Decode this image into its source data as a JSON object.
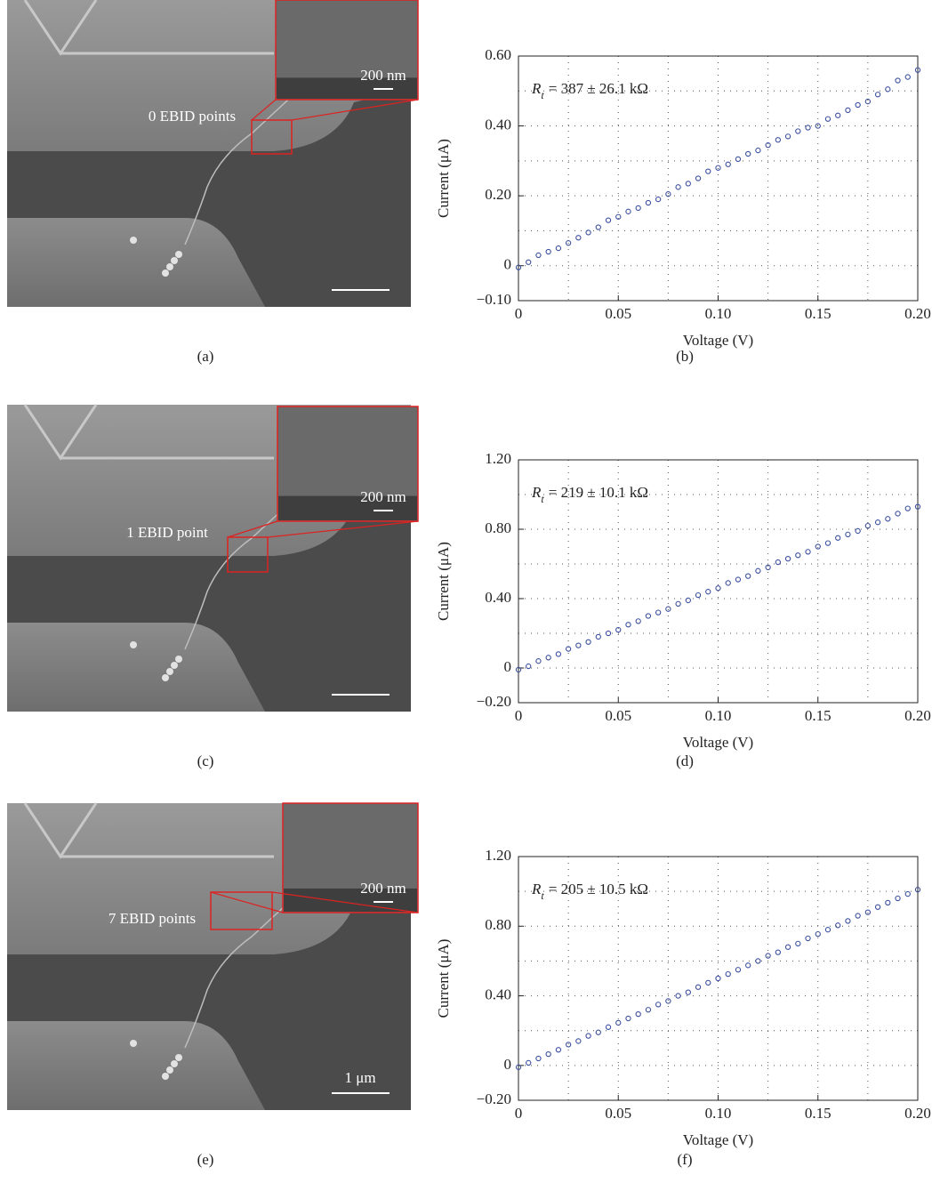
{
  "sem": [
    {
      "label": "(a)",
      "annotation": "0 EBID points",
      "inset_scale": "200 nm"
    },
    {
      "label": "(c)",
      "annotation": "1 EBID point",
      "inset_scale": "200 nm"
    },
    {
      "label": "(e)",
      "annotation": "7 EBID points",
      "inset_scale": "200 nm",
      "scale": "1 μm"
    }
  ],
  "chart_data": [
    {
      "type": "scatter",
      "label": "(b)",
      "x_label": "Voltage (V)",
      "y_label": "Current (μA)",
      "annotation": {
        "symbol": "R",
        "subscript": "t",
        "text": "= 387 ± 26.1 kΩ"
      },
      "color": "#3a4f9e",
      "grid": true,
      "xlim": [
        0,
        0.2
      ],
      "xticks": [
        0,
        0.05,
        {
          "value": 0.1,
          "label": "0.10"
        },
        0.15,
        {
          "value": 0.2,
          "label": "0.20"
        }
      ],
      "xminorticks": [
        0.025,
        0.075,
        0.125,
        0.175
      ],
      "ylim": [
        -0.1,
        0.6
      ],
      "yticks": [
        {
          "value": -0.1,
          "label": "−0.10"
        },
        0,
        {
          "value": 0.2,
          "label": "0.20"
        },
        {
          "value": 0.4,
          "label": "0.40"
        },
        {
          "value": 0.6,
          "label": "0.60"
        }
      ],
      "yminorticks": [
        0.1,
        0.3,
        0.5
      ],
      "x": [
        0,
        0.005,
        0.01,
        0.015,
        0.02,
        0.025,
        0.03,
        0.035,
        0.04,
        0.045,
        0.05,
        0.055,
        0.06,
        0.065,
        0.07,
        0.075,
        0.08,
        0.085,
        0.09,
        0.095,
        0.1,
        0.105,
        0.11,
        0.115,
        0.12,
        0.125,
        0.13,
        0.135,
        0.14,
        0.145,
        0.15,
        0.155,
        0.16,
        0.165,
        0.17,
        0.175,
        0.18,
        0.185,
        0.19,
        0.195,
        0.2
      ],
      "values": [
        -0.005,
        0.01,
        0.03,
        0.04,
        0.05,
        0.065,
        0.08,
        0.095,
        0.11,
        0.13,
        0.14,
        0.155,
        0.165,
        0.18,
        0.19,
        0.205,
        0.225,
        0.235,
        0.25,
        0.27,
        0.28,
        0.29,
        0.305,
        0.32,
        0.33,
        0.345,
        0.36,
        0.37,
        0.385,
        0.395,
        0.4,
        0.42,
        0.43,
        0.445,
        0.46,
        0.47,
        0.49,
        0.505,
        0.53,
        0.54,
        0.56
      ]
    },
    {
      "type": "scatter",
      "label": "(d)",
      "x_label": "Voltage (V)",
      "y_label": "Current (μA)",
      "annotation": {
        "symbol": "R",
        "subscript": "t",
        "text": "= 219 ± 10.1 kΩ"
      },
      "color": "#3a4f9e",
      "grid": true,
      "xlim": [
        0,
        0.2
      ],
      "xticks": [
        0,
        0.05,
        {
          "value": 0.1,
          "label": "0.10"
        },
        0.15,
        {
          "value": 0.2,
          "label": "0.20"
        }
      ],
      "xminorticks": [
        0.025,
        0.075,
        0.125,
        0.175
      ],
      "ylim": [
        -0.2,
        1.2
      ],
      "yticks": [
        {
          "value": -0.2,
          "label": "−0.20"
        },
        0,
        {
          "value": 0.4,
          "label": "0.40"
        },
        {
          "value": 0.8,
          "label": "0.80"
        },
        {
          "value": 1.2,
          "label": "1.20"
        }
      ],
      "yminorticks": [
        0.2,
        0.6,
        1.0
      ],
      "x": [
        0,
        0.005,
        0.01,
        0.015,
        0.02,
        0.025,
        0.03,
        0.035,
        0.04,
        0.045,
        0.05,
        0.055,
        0.06,
        0.065,
        0.07,
        0.075,
        0.08,
        0.085,
        0.09,
        0.095,
        0.1,
        0.105,
        0.11,
        0.115,
        0.12,
        0.125,
        0.13,
        0.135,
        0.14,
        0.145,
        0.15,
        0.155,
        0.16,
        0.165,
        0.17,
        0.175,
        0.18,
        0.185,
        0.19,
        0.195,
        0.2
      ],
      "values": [
        -0.01,
        0.01,
        0.04,
        0.06,
        0.08,
        0.11,
        0.13,
        0.15,
        0.18,
        0.2,
        0.22,
        0.25,
        0.27,
        0.3,
        0.32,
        0.34,
        0.37,
        0.39,
        0.42,
        0.44,
        0.46,
        0.49,
        0.51,
        0.53,
        0.56,
        0.58,
        0.61,
        0.63,
        0.65,
        0.67,
        0.7,
        0.72,
        0.75,
        0.77,
        0.79,
        0.82,
        0.84,
        0.86,
        0.89,
        0.92,
        0.93
      ]
    },
    {
      "type": "scatter",
      "label": "(f)",
      "x_label": "Voltage (V)",
      "y_label": "Current (μA)",
      "annotation": {
        "symbol": "R",
        "subscript": "t",
        "text": "= 205 ± 10.5 kΩ"
      },
      "color": "#3a4f9e",
      "grid": true,
      "xlim": [
        0,
        0.2
      ],
      "xticks": [
        0,
        0.05,
        {
          "value": 0.1,
          "label": "0.10"
        },
        0.15,
        {
          "value": 0.2,
          "label": "0.20"
        }
      ],
      "xminorticks": [
        0.025,
        0.075,
        0.125,
        0.175
      ],
      "ylim": [
        -0.2,
        1.2
      ],
      "yticks": [
        {
          "value": -0.2,
          "label": "−0.20"
        },
        0,
        {
          "value": 0.4,
          "label": "0.40"
        },
        {
          "value": 0.8,
          "label": "0.80"
        },
        {
          "value": 1.2,
          "label": "1.20"
        }
      ],
      "yminorticks": [
        0.2,
        0.6,
        1.0
      ],
      "x": [
        0,
        0.005,
        0.01,
        0.015,
        0.02,
        0.025,
        0.03,
        0.035,
        0.04,
        0.045,
        0.05,
        0.055,
        0.06,
        0.065,
        0.07,
        0.075,
        0.08,
        0.085,
        0.09,
        0.095,
        0.1,
        0.105,
        0.11,
        0.115,
        0.12,
        0.125,
        0.13,
        0.135,
        0.14,
        0.145,
        0.15,
        0.155,
        0.16,
        0.165,
        0.17,
        0.175,
        0.18,
        0.185,
        0.19,
        0.195,
        0.2
      ],
      "values": [
        -0.01,
        0.015,
        0.04,
        0.065,
        0.09,
        0.12,
        0.14,
        0.17,
        0.19,
        0.22,
        0.245,
        0.27,
        0.295,
        0.32,
        0.35,
        0.37,
        0.4,
        0.42,
        0.45,
        0.475,
        0.5,
        0.525,
        0.55,
        0.575,
        0.6,
        0.63,
        0.65,
        0.68,
        0.7,
        0.73,
        0.755,
        0.78,
        0.805,
        0.83,
        0.86,
        0.88,
        0.91,
        0.935,
        0.96,
        0.985,
        1.01
      ]
    }
  ]
}
